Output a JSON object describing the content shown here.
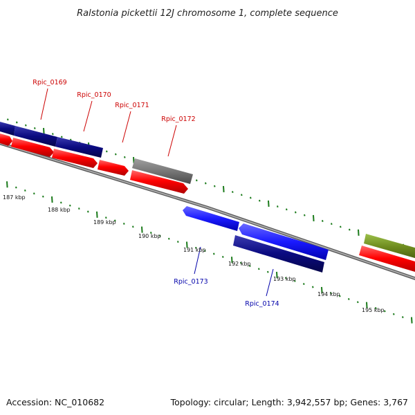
{
  "title": "Ralstonia pickettii 12J chromosome 1, complete sequence",
  "footer": {
    "accession": "Accession: NC_010682",
    "topology": "Topology: circular; Length: 3,942,557 bp; Genes: 3,767"
  },
  "scale_labels": [
    "187 kbp",
    "188 kbp",
    "189 kbp",
    "190 kbp",
    "191 kbp",
    "192 kbp",
    "193 kbp",
    "194 kbp",
    "195 kbp"
  ],
  "gene_labels": [
    {
      "text": "Rpic_0169",
      "color": "#cc0000"
    },
    {
      "text": "Rpic_0170",
      "color": "#cc0000"
    },
    {
      "text": "Rpic_0171",
      "color": "#cc0000"
    },
    {
      "text": "Rpic_0172",
      "color": "#cc0000"
    },
    {
      "text": "Rpic_0173",
      "color": "#0000aa"
    },
    {
      "text": "Rpic_0174",
      "color": "#0000aa"
    }
  ],
  "colors": {
    "red_cds": "#ff0000",
    "navy_cds": "#0a0a80",
    "blue_cds": "#1a1aff",
    "grey_feature": "#777777",
    "olive_feature": "#6e8b1e",
    "tick_green": "#1a7a1a",
    "backbone": "#888888"
  }
}
